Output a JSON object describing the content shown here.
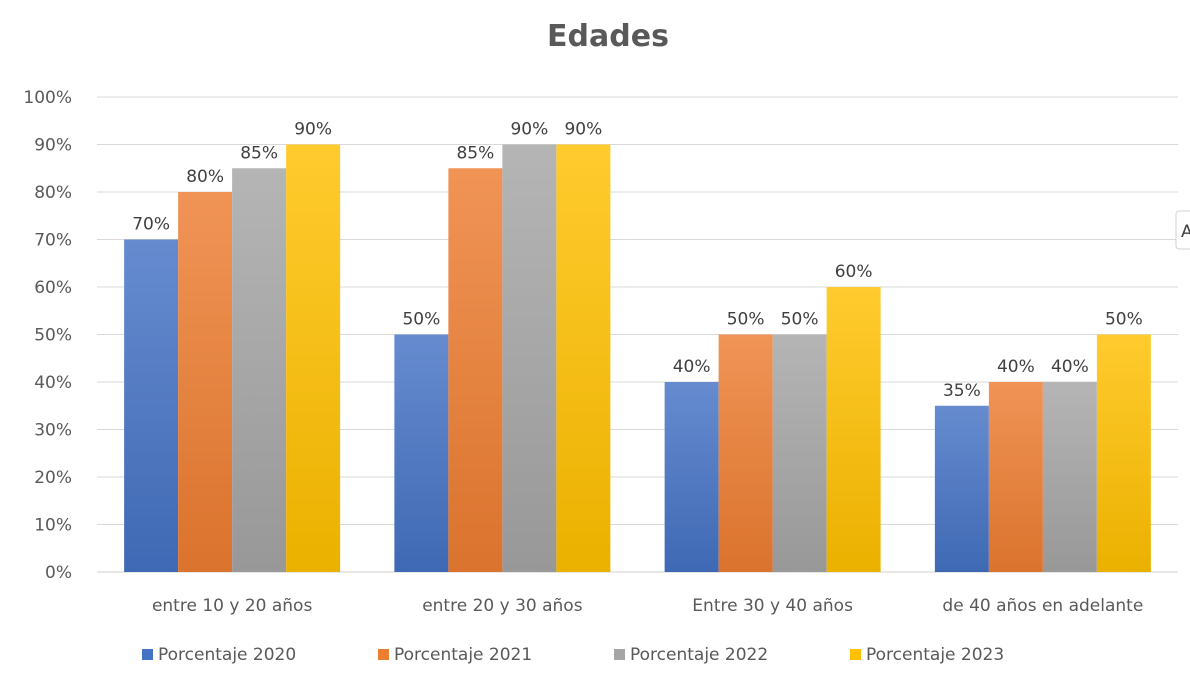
{
  "chart_data": {
    "type": "bar",
    "title": "Edades",
    "categories": [
      "entre 10 y 20 años",
      "entre 20 y 30 años",
      "Entre 30 y 40 años",
      "de 40 años en adelante"
    ],
    "series": [
      {
        "name": "Porcentaje 2020",
        "values": [
          70,
          50,
          40,
          35
        ],
        "color": "#4472C4",
        "labels": [
          "70%",
          "50%",
          "40%",
          "35%"
        ]
      },
      {
        "name": "Porcentaje 2021",
        "values": [
          80,
          85,
          50,
          40
        ],
        "color": "#ED7D31",
        "labels": [
          "80%",
          "85%",
          "50%",
          "40%"
        ]
      },
      {
        "name": "Porcentaje 2022",
        "values": [
          85,
          90,
          50,
          40
        ],
        "color": "#A5A5A5",
        "labels": [
          "85%",
          "90%",
          "50%",
          "40%"
        ]
      },
      {
        "name": "Porcentaje 2023",
        "values": [
          90,
          90,
          60,
          50
        ],
        "color": "#FFC000",
        "labels": [
          "90%",
          "90%",
          "60%",
          "50%"
        ]
      }
    ],
    "ylim": [
      0,
      100
    ],
    "yticks": [
      "0%",
      "10%",
      "20%",
      "30%",
      "40%",
      "50%",
      "60%",
      "70%",
      "80%",
      "90%",
      "100%"
    ],
    "grid": true,
    "legend": "bottom",
    "xlabel": "",
    "ylabel": ""
  },
  "side_handle": {
    "label": "A"
  }
}
